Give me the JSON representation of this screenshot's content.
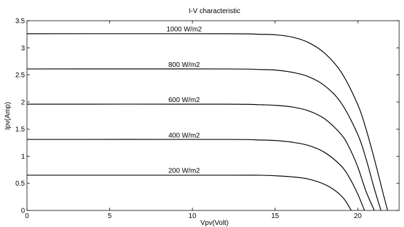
{
  "chart_data": {
    "type": "line",
    "title": "I-V characteristic",
    "xlabel": "Vpv(Volt)",
    "ylabel": "Ipv(Amp)",
    "xlim": [
      0,
      22.5
    ],
    "ylim": [
      0,
      3.5
    ],
    "xticks": [
      0,
      5,
      10,
      15,
      20
    ],
    "xtick_labels": [
      "0",
      "5",
      "10",
      "15",
      "20"
    ],
    "yticks": [
      0,
      0.5,
      1,
      1.5,
      2,
      2.5,
      3,
      3.5
    ],
    "ytick_labels": [
      "0",
      "0.5",
      "1",
      "1.5",
      "2",
      "2.5",
      "3",
      "3.5"
    ],
    "grid": false,
    "series": [
      {
        "name": "1000 W/m2",
        "label_at": [
          9.5,
          3.28
        ],
        "x": [
          0,
          12,
          14,
          15,
          16,
          17,
          18,
          19,
          20,
          20.5,
          21,
          21.5,
          21.8
        ],
        "y": [
          3.26,
          3.26,
          3.25,
          3.24,
          3.2,
          3.1,
          2.9,
          2.55,
          1.95,
          1.5,
          0.95,
          0.35,
          0
        ]
      },
      {
        "name": "800 W/m2",
        "label_at": [
          9.5,
          2.62
        ],
        "x": [
          0,
          12,
          14,
          15,
          16,
          17,
          18,
          19,
          20,
          20.5,
          21,
          21.4
        ],
        "y": [
          2.61,
          2.61,
          2.6,
          2.59,
          2.55,
          2.47,
          2.3,
          1.98,
          1.4,
          0.95,
          0.4,
          0
        ]
      },
      {
        "name": "600 W/m2",
        "label_at": [
          9.5,
          1.97
        ],
        "x": [
          0,
          12,
          14,
          15,
          16,
          17,
          18,
          19,
          19.5,
          20,
          20.5,
          21.0
        ],
        "y": [
          1.96,
          1.96,
          1.95,
          1.94,
          1.91,
          1.84,
          1.69,
          1.4,
          1.15,
          0.8,
          0.35,
          0
        ]
      },
      {
        "name": "400 W/m2",
        "label_at": [
          9.5,
          1.32
        ],
        "x": [
          0,
          12,
          14,
          15,
          16,
          17,
          18,
          19,
          19.5,
          20,
          20.4
        ],
        "y": [
          1.31,
          1.31,
          1.3,
          1.29,
          1.26,
          1.2,
          1.07,
          0.82,
          0.6,
          0.3,
          0
        ]
      },
      {
        "name": "200 W/m2",
        "label_at": [
          9.5,
          0.67
        ],
        "x": [
          0,
          12,
          14,
          15,
          16,
          17,
          18,
          18.7,
          19.2,
          19.6
        ],
        "y": [
          0.65,
          0.65,
          0.65,
          0.64,
          0.62,
          0.58,
          0.48,
          0.35,
          0.2,
          0
        ]
      }
    ]
  }
}
